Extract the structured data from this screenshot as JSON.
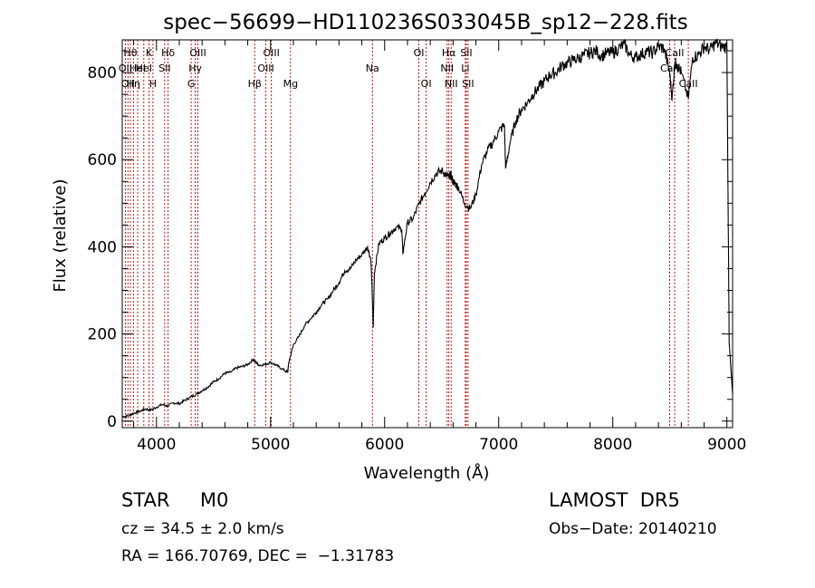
{
  "chart_data": {
    "type": "line",
    "title": "spec−56699−HD110236S033045B_sp12−228.fits",
    "xlabel": "Wavelength (Å)",
    "ylabel": "Flux (relative)",
    "xlim": [
      3700,
      9050
    ],
    "ylim": [
      -15,
      875
    ],
    "xticks": [
      4000,
      5000,
      6000,
      7000,
      8000,
      9000
    ],
    "yticks": [
      0,
      200,
      400,
      600,
      800
    ],
    "series": [
      {
        "x": [
          3700,
          3750,
          3800,
          3850,
          3900,
          3950,
          4000,
          4050,
          4100,
          4150,
          4200,
          4250,
          4300,
          4350,
          4400,
          4450,
          4500,
          4550,
          4600,
          4650,
          4700,
          4750,
          4800,
          4850,
          4870,
          4900,
          4950,
          5000,
          5050,
          5100,
          5150,
          5160,
          5200,
          5250,
          5300,
          5350,
          5400,
          5450,
          5500,
          5550,
          5600,
          5650,
          5700,
          5750,
          5800,
          5850,
          5880,
          5890,
          5900,
          5910,
          5950,
          6000,
          6050,
          6100,
          6150,
          6160,
          6200,
          6250,
          6300,
          6350,
          6400,
          6450,
          6500,
          6540,
          6563,
          6580,
          6600,
          6620,
          6650,
          6700,
          6750,
          6800,
          6850,
          6900,
          6950,
          7000,
          7050,
          7060,
          7100,
          7150,
          7200,
          7250,
          7300,
          7350,
          7400,
          7450,
          7500,
          7550,
          7600,
          7650,
          7700,
          7750,
          7800,
          7850,
          7900,
          7950,
          8000,
          8050,
          8100,
          8150,
          8200,
          8250,
          8300,
          8350,
          8400,
          8450,
          8498,
          8520,
          8542,
          8560,
          8600,
          8662,
          8700,
          8750,
          8800,
          8850,
          8900,
          8950,
          9000,
          9020,
          9050
        ],
        "y": [
          10,
          12,
          18,
          22,
          28,
          25,
          32,
          38,
          35,
          42,
          40,
          48,
          55,
          62,
          70,
          78,
          90,
          98,
          110,
          112,
          122,
          125,
          130,
          142,
          135,
          128,
          130,
          135,
          128,
          120,
          112,
          135,
          175,
          195,
          220,
          235,
          250,
          268,
          280,
          300,
          318,
          345,
          350,
          370,
          382,
          400,
          370,
          300,
          215,
          340,
          408,
          420,
          432,
          445,
          440,
          385,
          455,
          465,
          498,
          522,
          548,
          568,
          575,
          565,
          560,
          565,
          550,
          545,
          535,
          500,
          488,
          520,
          588,
          620,
          640,
          665,
          680,
          580,
          640,
          690,
          715,
          730,
          750,
          765,
          780,
          795,
          800,
          815,
          822,
          828,
          833,
          840,
          845,
          850,
          838,
          845,
          845,
          855,
          865,
          840,
          835,
          842,
          848,
          845,
          860,
          855,
          800,
          740,
          820,
          820,
          800,
          740,
          835,
          840,
          860,
          852,
          868,
          860,
          858,
          180,
          60
        ]
      }
    ],
    "lines": [
      {
        "wavelength": 3727,
        "label": "OII",
        "row": 2
      },
      {
        "wavelength": 3750,
        "label": "OII",
        "row": 3
      },
      {
        "wavelength": 3771,
        "label": "Hθ",
        "row": 1
      },
      {
        "wavelength": 3798,
        "label": "Hη",
        "row": 3
      },
      {
        "wavelength": 3835,
        "label": "HeI",
        "row": 2
      },
      {
        "wavelength": 3889,
        "label": "HeI",
        "row": 2
      },
      {
        "wavelength": 3934,
        "label": "K",
        "row": 1
      },
      {
        "wavelength": 3969,
        "label": "H",
        "row": 3
      },
      {
        "wavelength": 4072,
        "label": "SII",
        "row": 2
      },
      {
        "wavelength": 4102,
        "label": "Hδ",
        "row": 1
      },
      {
        "wavelength": 4304,
        "label": "G",
        "row": 3
      },
      {
        "wavelength": 4340,
        "label": "Hγ",
        "row": 2
      },
      {
        "wavelength": 4363,
        "label": "OIII",
        "row": 1
      },
      {
        "wavelength": 4861,
        "label": "Hβ",
        "row": 3
      },
      {
        "wavelength": 4959,
        "label": "OIII",
        "row": 2
      },
      {
        "wavelength": 5007,
        "label": "OIII",
        "row": 1
      },
      {
        "wavelength": 5175,
        "label": "Mg",
        "row": 3
      },
      {
        "wavelength": 5893,
        "label": "Na",
        "row": 2
      },
      {
        "wavelength": 6300,
        "label": "OI",
        "row": 1
      },
      {
        "wavelength": 6364,
        "label": "OI",
        "row": 3
      },
      {
        "wavelength": 6548,
        "label": "NII",
        "row": 2
      },
      {
        "wavelength": 6563,
        "label": "Hα",
        "row": 1
      },
      {
        "wavelength": 6583,
        "label": "NII",
        "row": 3
      },
      {
        "wavelength": 6707,
        "label": "Li",
        "row": 2
      },
      {
        "wavelength": 6716,
        "label": "SII",
        "row": 1
      },
      {
        "wavelength": 6731,
        "label": "SII",
        "row": 3
      },
      {
        "wavelength": 8498,
        "label": "CaII",
        "row": 2
      },
      {
        "wavelength": 8542,
        "label": "CaII",
        "row": 1
      },
      {
        "wavelength": 8662,
        "label": "CaII",
        "row": 3
      }
    ],
    "line_color": "#b00000"
  },
  "info": {
    "object_class": "STAR     M0",
    "survey": "LAMOST  DR5",
    "redshift": "cz = 34.5 ± 2.0 km/s",
    "obs_date": "Obs−Date: 20140210",
    "coords": "RA = 166.70769, DEC =  −1.31783"
  }
}
